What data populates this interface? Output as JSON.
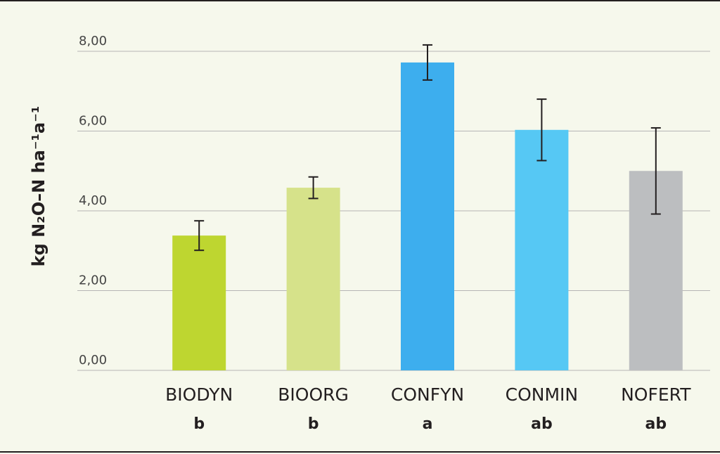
{
  "chart_data": {
    "type": "bar",
    "y_label": "kg N₂O–N ha⁻¹a⁻¹",
    "categories": [
      "BIODYN",
      "BIOORG",
      "CONFYN",
      "CONMIN",
      "NOFERT"
    ],
    "letters": [
      "b",
      "b",
      "a",
      "ab",
      "ab"
    ],
    "values": [
      3.38,
      4.58,
      7.72,
      6.03,
      5.0
    ],
    "errors": [
      0.37,
      0.27,
      0.44,
      0.77,
      1.08
    ],
    "colors": [
      "#bed630",
      "#d6e28a",
      "#3daeee",
      "#56c8f4",
      "#bcbec0"
    ],
    "ylim": [
      0,
      8
    ],
    "yticks": [
      {
        "value": 0,
        "label": "0,00"
      },
      {
        "value": 2,
        "label": "2,00"
      },
      {
        "value": 4,
        "label": "4,00"
      },
      {
        "value": 6,
        "label": "6,00"
      },
      {
        "value": 8,
        "label": "8,00"
      }
    ],
    "grid": true
  }
}
